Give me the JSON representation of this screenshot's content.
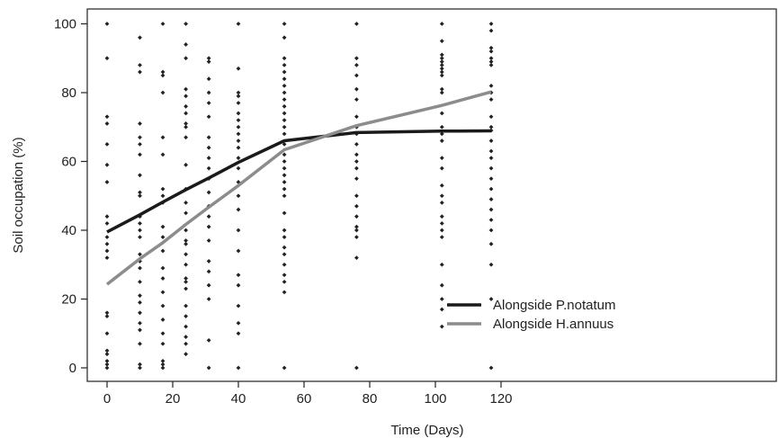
{
  "chart_data": {
    "type": "scatter",
    "title": "",
    "xlabel": "Time (Days)",
    "ylabel": "Soil occupation (%)",
    "xlim": [
      -4,
      121
    ],
    "ylim": [
      -3,
      103
    ],
    "xticks": [
      0,
      20,
      40,
      60,
      80,
      100,
      120
    ],
    "yticks": [
      0,
      20,
      40,
      60,
      80,
      100
    ],
    "xtick_labels": [
      "0",
      "20",
      "40",
      "60",
      "80",
      "100",
      "120"
    ],
    "ytick_labels": [
      "0",
      "20",
      "40",
      "60",
      "80",
      "100"
    ],
    "grid": false,
    "legend_position": "bottom-right",
    "points": [
      {
        "x": 0,
        "y": [
          100,
          90,
          73,
          71,
          65,
          59,
          54,
          44,
          42,
          38,
          36,
          34,
          32,
          16,
          15,
          10,
          5,
          4,
          2,
          1,
          0
        ]
      },
      {
        "x": 10,
        "y": [
          96,
          88,
          86,
          71,
          67,
          65,
          62,
          56,
          51,
          50,
          44,
          42,
          40,
          38,
          33,
          31,
          29,
          25,
          21,
          19,
          16,
          13,
          11,
          7,
          1,
          0
        ]
      },
      {
        "x": 17,
        "y": [
          100,
          86,
          85,
          80,
          67,
          62,
          52,
          50,
          48,
          41,
          38,
          34,
          29,
          26,
          22,
          18,
          14,
          10,
          7,
          2,
          1,
          0
        ]
      },
      {
        "x": 24,
        "y": [
          100,
          94,
          90,
          81,
          79,
          76,
          74,
          71,
          70,
          67,
          59,
          52,
          48,
          45,
          40,
          37,
          36,
          33,
          30,
          26,
          25,
          23,
          18,
          15,
          12,
          9,
          7,
          4
        ]
      },
      {
        "x": 31,
        "y": [
          90,
          89,
          84,
          80,
          77,
          73,
          67,
          64,
          61,
          58,
          55,
          51,
          47,
          44,
          41,
          37,
          31,
          28,
          24,
          20,
          8,
          0
        ]
      },
      {
        "x": 40,
        "y": [
          100,
          87,
          80,
          79,
          77,
          74,
          72,
          70,
          68,
          66,
          64,
          61,
          58,
          54,
          50,
          46,
          40,
          34,
          27,
          24,
          18,
          13,
          10,
          0
        ]
      },
      {
        "x": 54,
        "y": [
          100,
          96,
          90,
          88,
          86,
          84,
          82,
          80,
          78,
          76,
          74,
          72,
          70,
          68,
          65,
          62,
          60,
          58,
          56,
          54,
          52,
          50,
          45,
          40,
          38,
          35,
          33,
          30,
          27,
          25,
          22,
          0
        ]
      },
      {
        "x": 76,
        "y": [
          100,
          90,
          88,
          85,
          81,
          78,
          73,
          70,
          68,
          65,
          62,
          60,
          58,
          55,
          50,
          47,
          44,
          41,
          40,
          38,
          32,
          0
        ]
      },
      {
        "x": 102,
        "y": [
          100,
          95,
          91,
          90,
          89,
          88,
          87,
          86,
          85,
          81,
          80,
          74,
          70,
          68,
          66,
          61,
          58,
          53,
          50,
          48,
          44,
          42,
          40,
          38,
          30,
          24,
          20,
          17,
          12
        ]
      },
      {
        "x": 117,
        "y": [
          100,
          98,
          93,
          92,
          90,
          89,
          88,
          82,
          80,
          78,
          73,
          70,
          69,
          66,
          63,
          61,
          58,
          55,
          52,
          49,
          46,
          43,
          40,
          36,
          30,
          20,
          0
        ]
      }
    ],
    "series": [
      {
        "name": "Alongside P.notatum",
        "color": "#1a1a1a",
        "x": [
          0,
          10,
          17,
          24,
          31,
          40,
          54,
          76,
          102,
          117
        ],
        "y": [
          39.5,
          44.5,
          48.2,
          51.8,
          55.2,
          59.7,
          66,
          68.4,
          68.8,
          68.9
        ]
      },
      {
        "name": "Alongside H.annuus",
        "color": "#8c8c8c",
        "x": [
          0,
          10,
          17,
          24,
          31,
          40,
          54,
          76,
          102,
          117
        ],
        "y": [
          24.3,
          31.7,
          36.4,
          41.7,
          46.7,
          53,
          63.4,
          70.4,
          76.3,
          80.2
        ]
      }
    ]
  }
}
